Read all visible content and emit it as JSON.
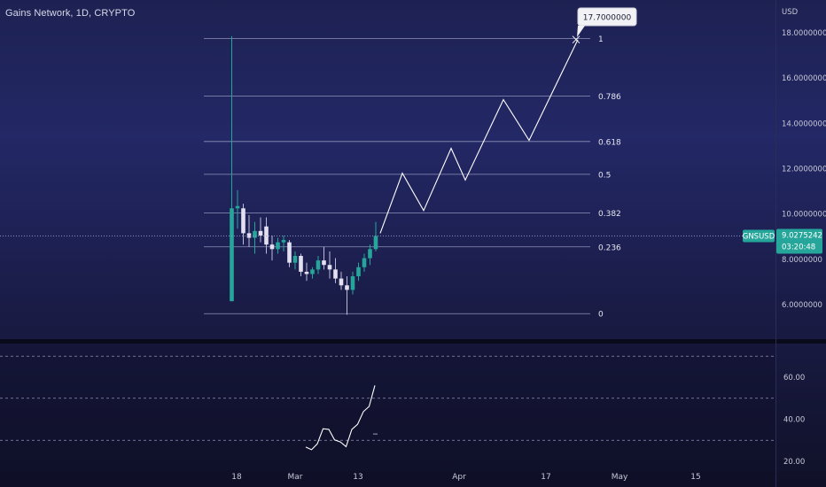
{
  "header": {
    "title": "Gains Network, 1D, CRYPTO"
  },
  "price_axis": {
    "currency": "USD",
    "ticks": [
      "18.0000000",
      "16.0000000",
      "14.0000000",
      "12.0000000",
      "10.0000000",
      "8.0000000",
      "6.0000000"
    ]
  },
  "current_price": {
    "symbol": "GNSUSD",
    "price": "9.0275242",
    "countdown": "03:20:48"
  },
  "target_callout": "17.7000000",
  "oscillator_axis": {
    "ticks": [
      "60.00",
      "40.00",
      "20.00"
    ]
  },
  "x_axis": {
    "ticks": [
      "18",
      "Mar",
      "13",
      "Apr",
      "17",
      "May",
      "15"
    ]
  },
  "colors": {
    "up": "#26a69a",
    "down_candle": "#e4e0f2",
    "wick": "#bdbad6",
    "fib_line": "#8f92b8",
    "projection": "#ffffff",
    "badge": "#26a69a"
  },
  "chart_data": {
    "type": "candlestick",
    "y_axis_unit": "USD",
    "ylim": [
      4.9,
      19.4
    ],
    "candles": [
      {
        "o": 6.15,
        "h": 17.85,
        "l": 6.15,
        "c": 10.25
      },
      {
        "o": 10.25,
        "h": 11.05,
        "l": 9.35,
        "c": 10.35
      },
      {
        "o": 10.25,
        "h": 10.45,
        "l": 8.65,
        "c": 9.15
      },
      {
        "o": 9.15,
        "h": 9.95,
        "l": 8.55,
        "c": 8.95
      },
      {
        "o": 8.95,
        "h": 9.65,
        "l": 8.25,
        "c": 9.25
      },
      {
        "o": 9.25,
        "h": 9.85,
        "l": 8.75,
        "c": 9.05
      },
      {
        "o": 9.45,
        "h": 9.85,
        "l": 8.25,
        "c": 8.65
      },
      {
        "o": 8.65,
        "h": 9.05,
        "l": 7.95,
        "c": 8.45
      },
      {
        "o": 8.45,
        "h": 8.95,
        "l": 8.25,
        "c": 8.75
      },
      {
        "o": 8.75,
        "h": 9.05,
        "l": 8.35,
        "c": 8.85
      },
      {
        "o": 8.75,
        "h": 8.85,
        "l": 7.65,
        "c": 7.85
      },
      {
        "o": 7.85,
        "h": 8.35,
        "l": 7.55,
        "c": 8.15
      },
      {
        "o": 8.15,
        "h": 8.25,
        "l": 7.25,
        "c": 7.45
      },
      {
        "o": 7.45,
        "h": 7.85,
        "l": 7.05,
        "c": 7.35
      },
      {
        "o": 7.35,
        "h": 7.65,
        "l": 7.15,
        "c": 7.55
      },
      {
        "o": 7.55,
        "h": 8.15,
        "l": 7.35,
        "c": 7.95
      },
      {
        "o": 7.95,
        "h": 8.55,
        "l": 7.55,
        "c": 7.75
      },
      {
        "o": 7.75,
        "h": 8.35,
        "l": 7.15,
        "c": 7.55
      },
      {
        "o": 7.55,
        "h": 8.05,
        "l": 6.95,
        "c": 7.15
      },
      {
        "o": 7.15,
        "h": 7.45,
        "l": 6.65,
        "c": 6.85
      },
      {
        "o": 6.85,
        "h": 7.25,
        "l": 5.55,
        "c": 6.65
      },
      {
        "o": 6.65,
        "h": 7.45,
        "l": 6.45,
        "c": 7.25
      },
      {
        "o": 7.25,
        "h": 7.85,
        "l": 7.05,
        "c": 7.65
      },
      {
        "o": 7.65,
        "h": 8.25,
        "l": 7.45,
        "c": 8.05
      },
      {
        "o": 8.05,
        "h": 8.65,
        "l": 7.75,
        "c": 8.45
      },
      {
        "o": 8.45,
        "h": 9.65,
        "l": 8.35,
        "c": 9.0275
      }
    ],
    "fib_levels": [
      {
        "label": "1",
        "price": 17.75
      },
      {
        "label": "0.786",
        "price": 15.2
      },
      {
        "label": "0.618",
        "price": 13.2
      },
      {
        "label": "0.5",
        "price": 11.75
      },
      {
        "label": "0.382",
        "price": 10.05
      },
      {
        "label": "0.236",
        "price": 8.55
      },
      {
        "label": "0",
        "price": 5.6
      }
    ],
    "projection_path": [
      9.15,
      11.8,
      10.15,
      12.9,
      11.5,
      15.05,
      13.25,
      17.7
    ],
    "oscillator": {
      "ylim": [
        19.0,
        67.0
      ],
      "levels": [
        30,
        50,
        70
      ],
      "values": [
        26.8,
        25.5,
        28.3,
        35.5,
        35.2,
        30.2,
        29.2,
        27.0,
        35.2,
        37.6,
        43.6,
        46.1,
        56.1
      ]
    }
  }
}
